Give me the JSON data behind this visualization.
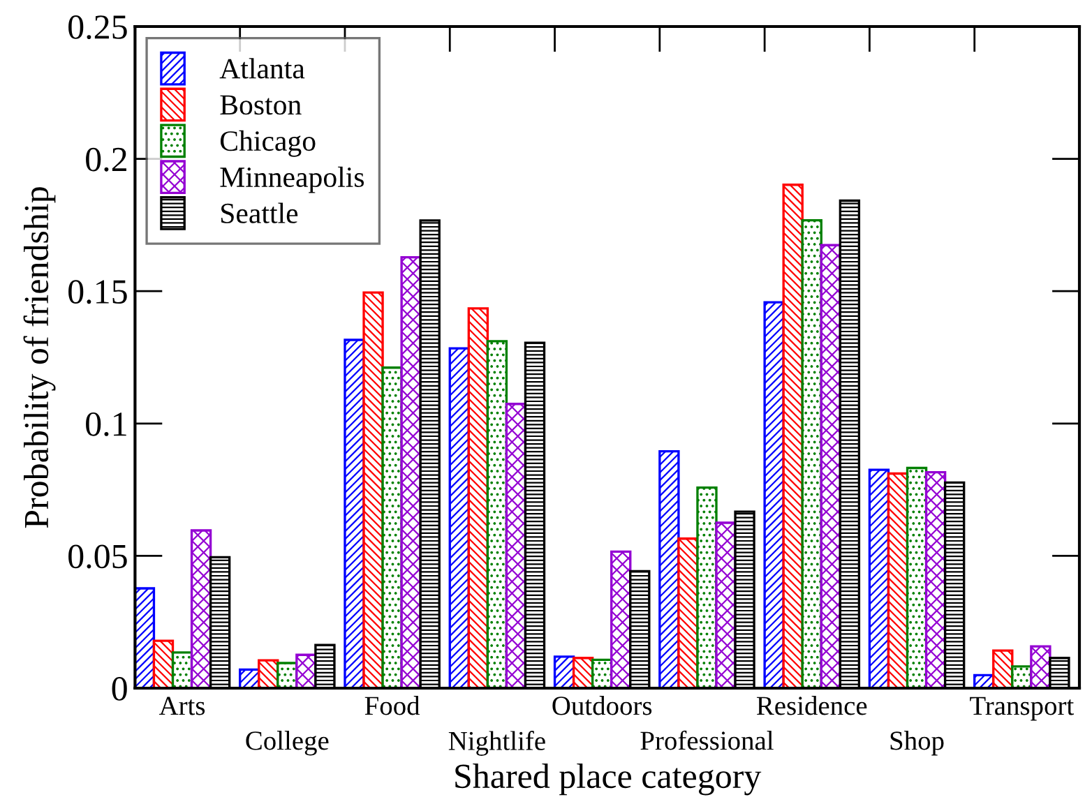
{
  "chart_data": {
    "type": "bar",
    "xlabel": "Shared place category",
    "ylabel": "Probability of friendship",
    "categories": [
      "Arts",
      "College",
      "Food",
      "Nightlife",
      "Outdoors",
      "Professional",
      "Residence",
      "Shop",
      "Transport"
    ],
    "series": [
      {
        "name": "Atlanta",
        "color": "#0000ff",
        "values": [
          0.0377,
          0.007,
          0.1316,
          0.1284,
          0.0119,
          0.0895,
          0.1458,
          0.0825,
          0.0049
        ]
      },
      {
        "name": "Boston",
        "color": "#ff0000",
        "values": [
          0.0179,
          0.0105,
          0.1495,
          0.1435,
          0.0114,
          0.0565,
          0.1902,
          0.0811,
          0.0142
        ]
      },
      {
        "name": "Chicago",
        "color": "#008000",
        "values": [
          0.0135,
          0.0095,
          0.1211,
          0.1311,
          0.0107,
          0.0758,
          0.1768,
          0.0832,
          0.0082
        ]
      },
      {
        "name": "Minneapolis",
        "color": "#9400d3",
        "values": [
          0.0596,
          0.0126,
          0.1628,
          0.1074,
          0.0516,
          0.0625,
          0.1674,
          0.0816,
          0.0158
        ]
      },
      {
        "name": "Seattle",
        "color": "#000000",
        "values": [
          0.0495,
          0.0163,
          0.1767,
          0.1305,
          0.0442,
          0.0667,
          0.1842,
          0.0777,
          0.0114
        ]
      }
    ],
    "ylim": [
      0,
      0.25
    ],
    "yticks": [
      0,
      0.05,
      0.1,
      0.15,
      0.2,
      0.25
    ],
    "legend": "top left"
  }
}
